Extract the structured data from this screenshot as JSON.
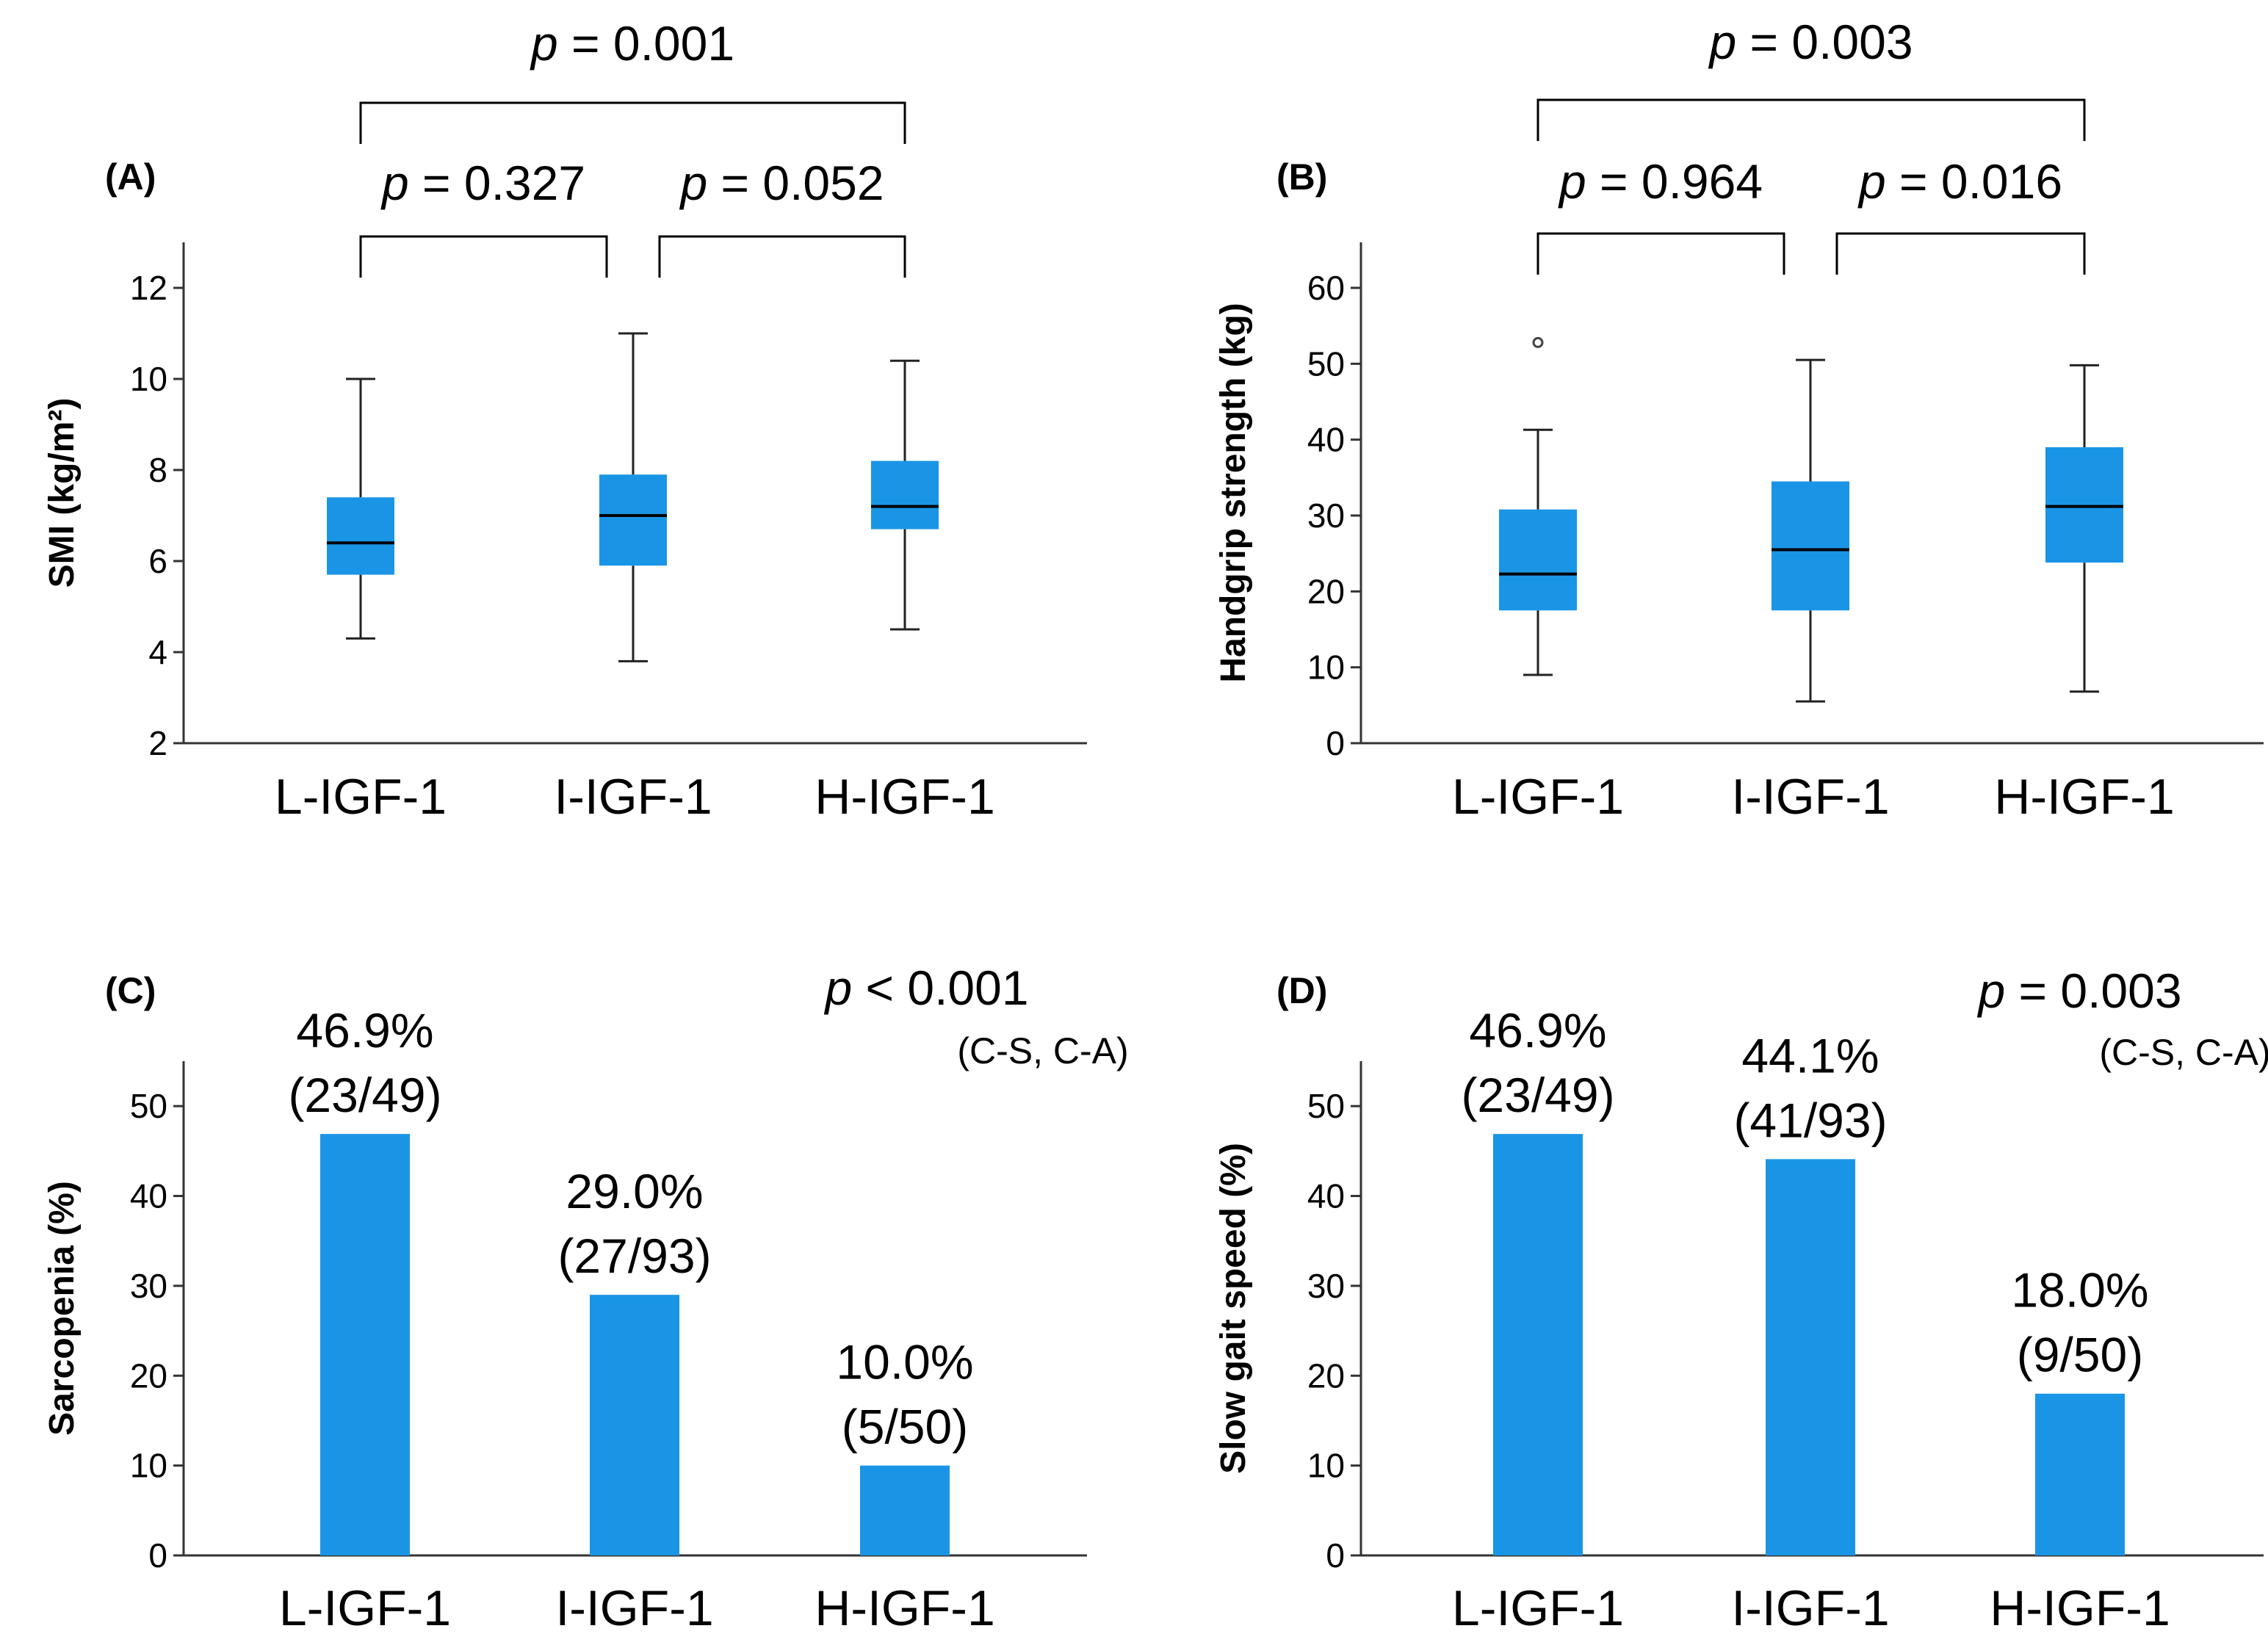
{
  "chart_data": [
    {
      "panel": "(A)",
      "type": "box",
      "ylabel": "SMI (kg/m²)",
      "categories": [
        "L-IGF-1",
        "I-IGF-1",
        "H-IGF-1"
      ],
      "ylim": [
        2,
        13
      ],
      "yticks": [
        2,
        4,
        6,
        8,
        10,
        12
      ],
      "boxes": [
        {
          "min": 4.3,
          "q1": 5.7,
          "median": 6.4,
          "q3": 7.4,
          "max": 10.0,
          "outliers": []
        },
        {
          "min": 3.8,
          "q1": 5.9,
          "median": 7.0,
          "q3": 7.9,
          "max": 11.0,
          "outliers": []
        },
        {
          "min": 4.5,
          "q1": 6.7,
          "median": 7.2,
          "q3": 8.2,
          "max": 10.4,
          "outliers": []
        }
      ],
      "comparisons": [
        {
          "pair": [
            0,
            1
          ],
          "level": 1,
          "pre": "p",
          "text": " = 0.327"
        },
        {
          "pair": [
            1,
            2
          ],
          "level": 1,
          "pre": "p",
          "text": " = 0.052"
        },
        {
          "pair": [
            0,
            2
          ],
          "level": 2,
          "pre": "p",
          "text": " = 0.001"
        }
      ]
    },
    {
      "panel": "(B)",
      "type": "box",
      "ylabel": "Handgrip strength (kg)",
      "categories": [
        "L-IGF-1",
        "I-IGF-1",
        "H-IGF-1"
      ],
      "ylim": [
        0,
        66
      ],
      "yticks": [
        0,
        10,
        20,
        30,
        40,
        50,
        60
      ],
      "boxes": [
        {
          "min": 9,
          "q1": 17.5,
          "median": 22.3,
          "q3": 30.8,
          "max": 41.3,
          "outliers": [
            52.8
          ]
        },
        {
          "min": 5.5,
          "q1": 17.5,
          "median": 25.5,
          "q3": 34.5,
          "max": 50.5,
          "outliers": []
        },
        {
          "min": 6.8,
          "q1": 23.8,
          "median": 31.2,
          "q3": 39.0,
          "max": 49.8,
          "outliers": []
        }
      ],
      "comparisons": [
        {
          "pair": [
            0,
            1
          ],
          "level": 1,
          "pre": "p",
          "text": " = 0.964"
        },
        {
          "pair": [
            1,
            2
          ],
          "level": 1,
          "pre": "p",
          "text": " = 0.016"
        },
        {
          "pair": [
            0,
            2
          ],
          "level": 2,
          "pre": "p",
          "text": " = 0.003"
        }
      ]
    },
    {
      "panel": "(C)",
      "type": "bar",
      "ylabel": "Sarcopenia (%)",
      "categories": [
        "L-IGF-1",
        "I-IGF-1",
        "H-IGF-1"
      ],
      "ylim": [
        0,
        55
      ],
      "yticks": [
        0,
        10,
        20,
        30,
        40,
        50
      ],
      "values": [
        46.9,
        29.0,
        10.0
      ],
      "labels": [
        {
          "pct": "46.9%",
          "frac": "(23/49)"
        },
        {
          "pct": "29.0%",
          "frac": "(27/93)"
        },
        {
          "pct": "10.0%",
          "frac": "(5/50)"
        }
      ],
      "annotation": {
        "pre": "p",
        "text": " < 0.001",
        "sub": "(C-S, C-A)"
      }
    },
    {
      "panel": "(D)",
      "type": "bar",
      "ylabel": "Slow gait speed (%)",
      "categories": [
        "L-IGF-1",
        "I-IGF-1",
        "H-IGF-1"
      ],
      "ylim": [
        0,
        55
      ],
      "yticks": [
        0,
        10,
        20,
        30,
        40,
        50
      ],
      "values": [
        46.9,
        44.1,
        18.0
      ],
      "labels": [
        {
          "pct": "46.9%",
          "frac": "(23/49)"
        },
        {
          "pct": "44.1%",
          "frac": "(41/93)"
        },
        {
          "pct": "18.0%",
          "frac": "(9/50)"
        }
      ],
      "annotation": {
        "pre": "p",
        "text": " = 0.003",
        "sub": "(C-S, C-A)"
      }
    }
  ]
}
